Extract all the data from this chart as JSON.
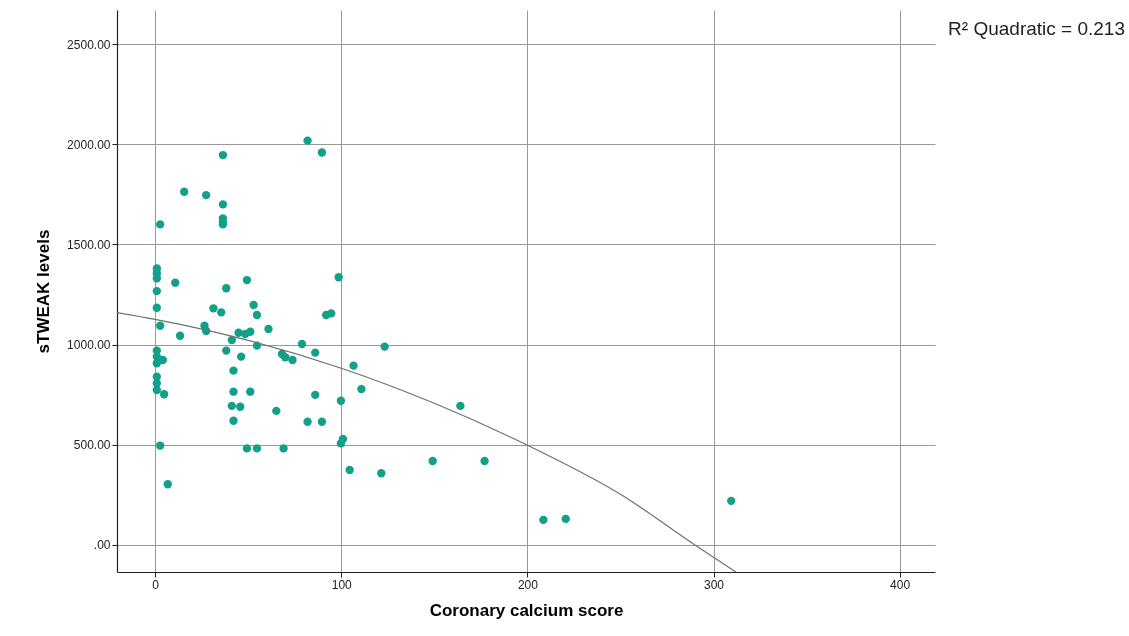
{
  "chart_data": {
    "type": "scatter",
    "xlabel": "Coronary calcium score",
    "ylabel": "sTWEAK levels",
    "annotations": [
      "R² Quadratic = 0.213"
    ],
    "xlim": [
      -20.5,
      419
    ],
    "ylim": [
      -135,
      2670
    ],
    "xticks": [
      0,
      100,
      200,
      300,
      400
    ],
    "yticks": [
      {
        "value": 0,
        "label": ".00"
      },
      {
        "value": 500,
        "label": "500.00"
      },
      {
        "value": 1000,
        "label": "1000.00"
      },
      {
        "value": 1500,
        "label": "1500.00"
      },
      {
        "value": 2000,
        "label": "2000.00"
      },
      {
        "value": 2500,
        "label": "2500.00"
      }
    ],
    "grid": true,
    "series": [
      {
        "marker": "circle",
        "color": "#13a08b",
        "x": [
          36.4,
          15.6,
          27.4,
          36.4,
          36.4,
          36.4,
          36.4,
          2.7,
          0.9,
          0.9,
          0.9,
          10.8,
          49.3,
          38.2,
          0.9,
          52.9,
          54.7,
          31.3,
          35.5,
          0.9,
          2.7,
          13.4,
          26.5,
          27.4,
          41.2,
          44.8,
          48.4,
          51.1,
          54.7,
          0.9,
          0.9,
          4.1,
          0.9,
          0.9,
          0.9,
          0.9,
          4.8,
          38.2,
          46.2,
          42.1,
          42.1,
          51.1,
          41.2,
          45.7,
          42.1,
          2.7,
          49.3,
          54.7,
          6.8,
          81.9,
          89.6,
          98.6,
          91.9,
          94.6,
          60.9,
          78.9,
          123.3,
          86,
          68.1,
          69.9,
          73.8,
          106.6,
          110.8,
          86,
          99.8,
          65.1,
          81.9,
          89.6,
          100.9,
          99.8,
          69,
          104.5,
          121.5,
          164,
          149.1,
          177,
          208.6,
          220.6,
          309.5
        ],
        "values": [
          1946,
          1763,
          1746,
          1700,
          1630,
          1613,
          1600,
          1600,
          1380,
          1356,
          1331,
          1309,
          1322,
          1281,
          1267,
          1198,
          1148,
          1181,
          1161,
          1184,
          1094,
          1044,
          1094,
          1068,
          1023,
          1059,
          1053,
          1064,
          995,
          970,
          940,
          923,
          907,
          840,
          807,
          773,
          752,
          970,
          940,
          870,
          765,
          765,
          694,
          690,
          620,
          496,
          482,
          482,
          303,
          2018,
          1959,
          1336,
          1148,
          1156,
          1078,
          1003,
          990,
          960,
          953,
          937,
          923,
          895,
          778,
          749,
          720,
          669,
          615,
          615,
          529,
          507,
          482,
          374,
          358,
          694,
          419,
          419,
          125,
          130,
          220
        ]
      },
      {
        "type": "line",
        "line_style": "solid",
        "color": "#707070",
        "x": [
          -20.5,
          0,
          50,
          100,
          150,
          200,
          250,
          290,
          312
        ],
        "values": [
          1160,
          1126,
          1021,
          882,
          707,
          498,
          253,
          0,
          -135
        ]
      }
    ]
  }
}
